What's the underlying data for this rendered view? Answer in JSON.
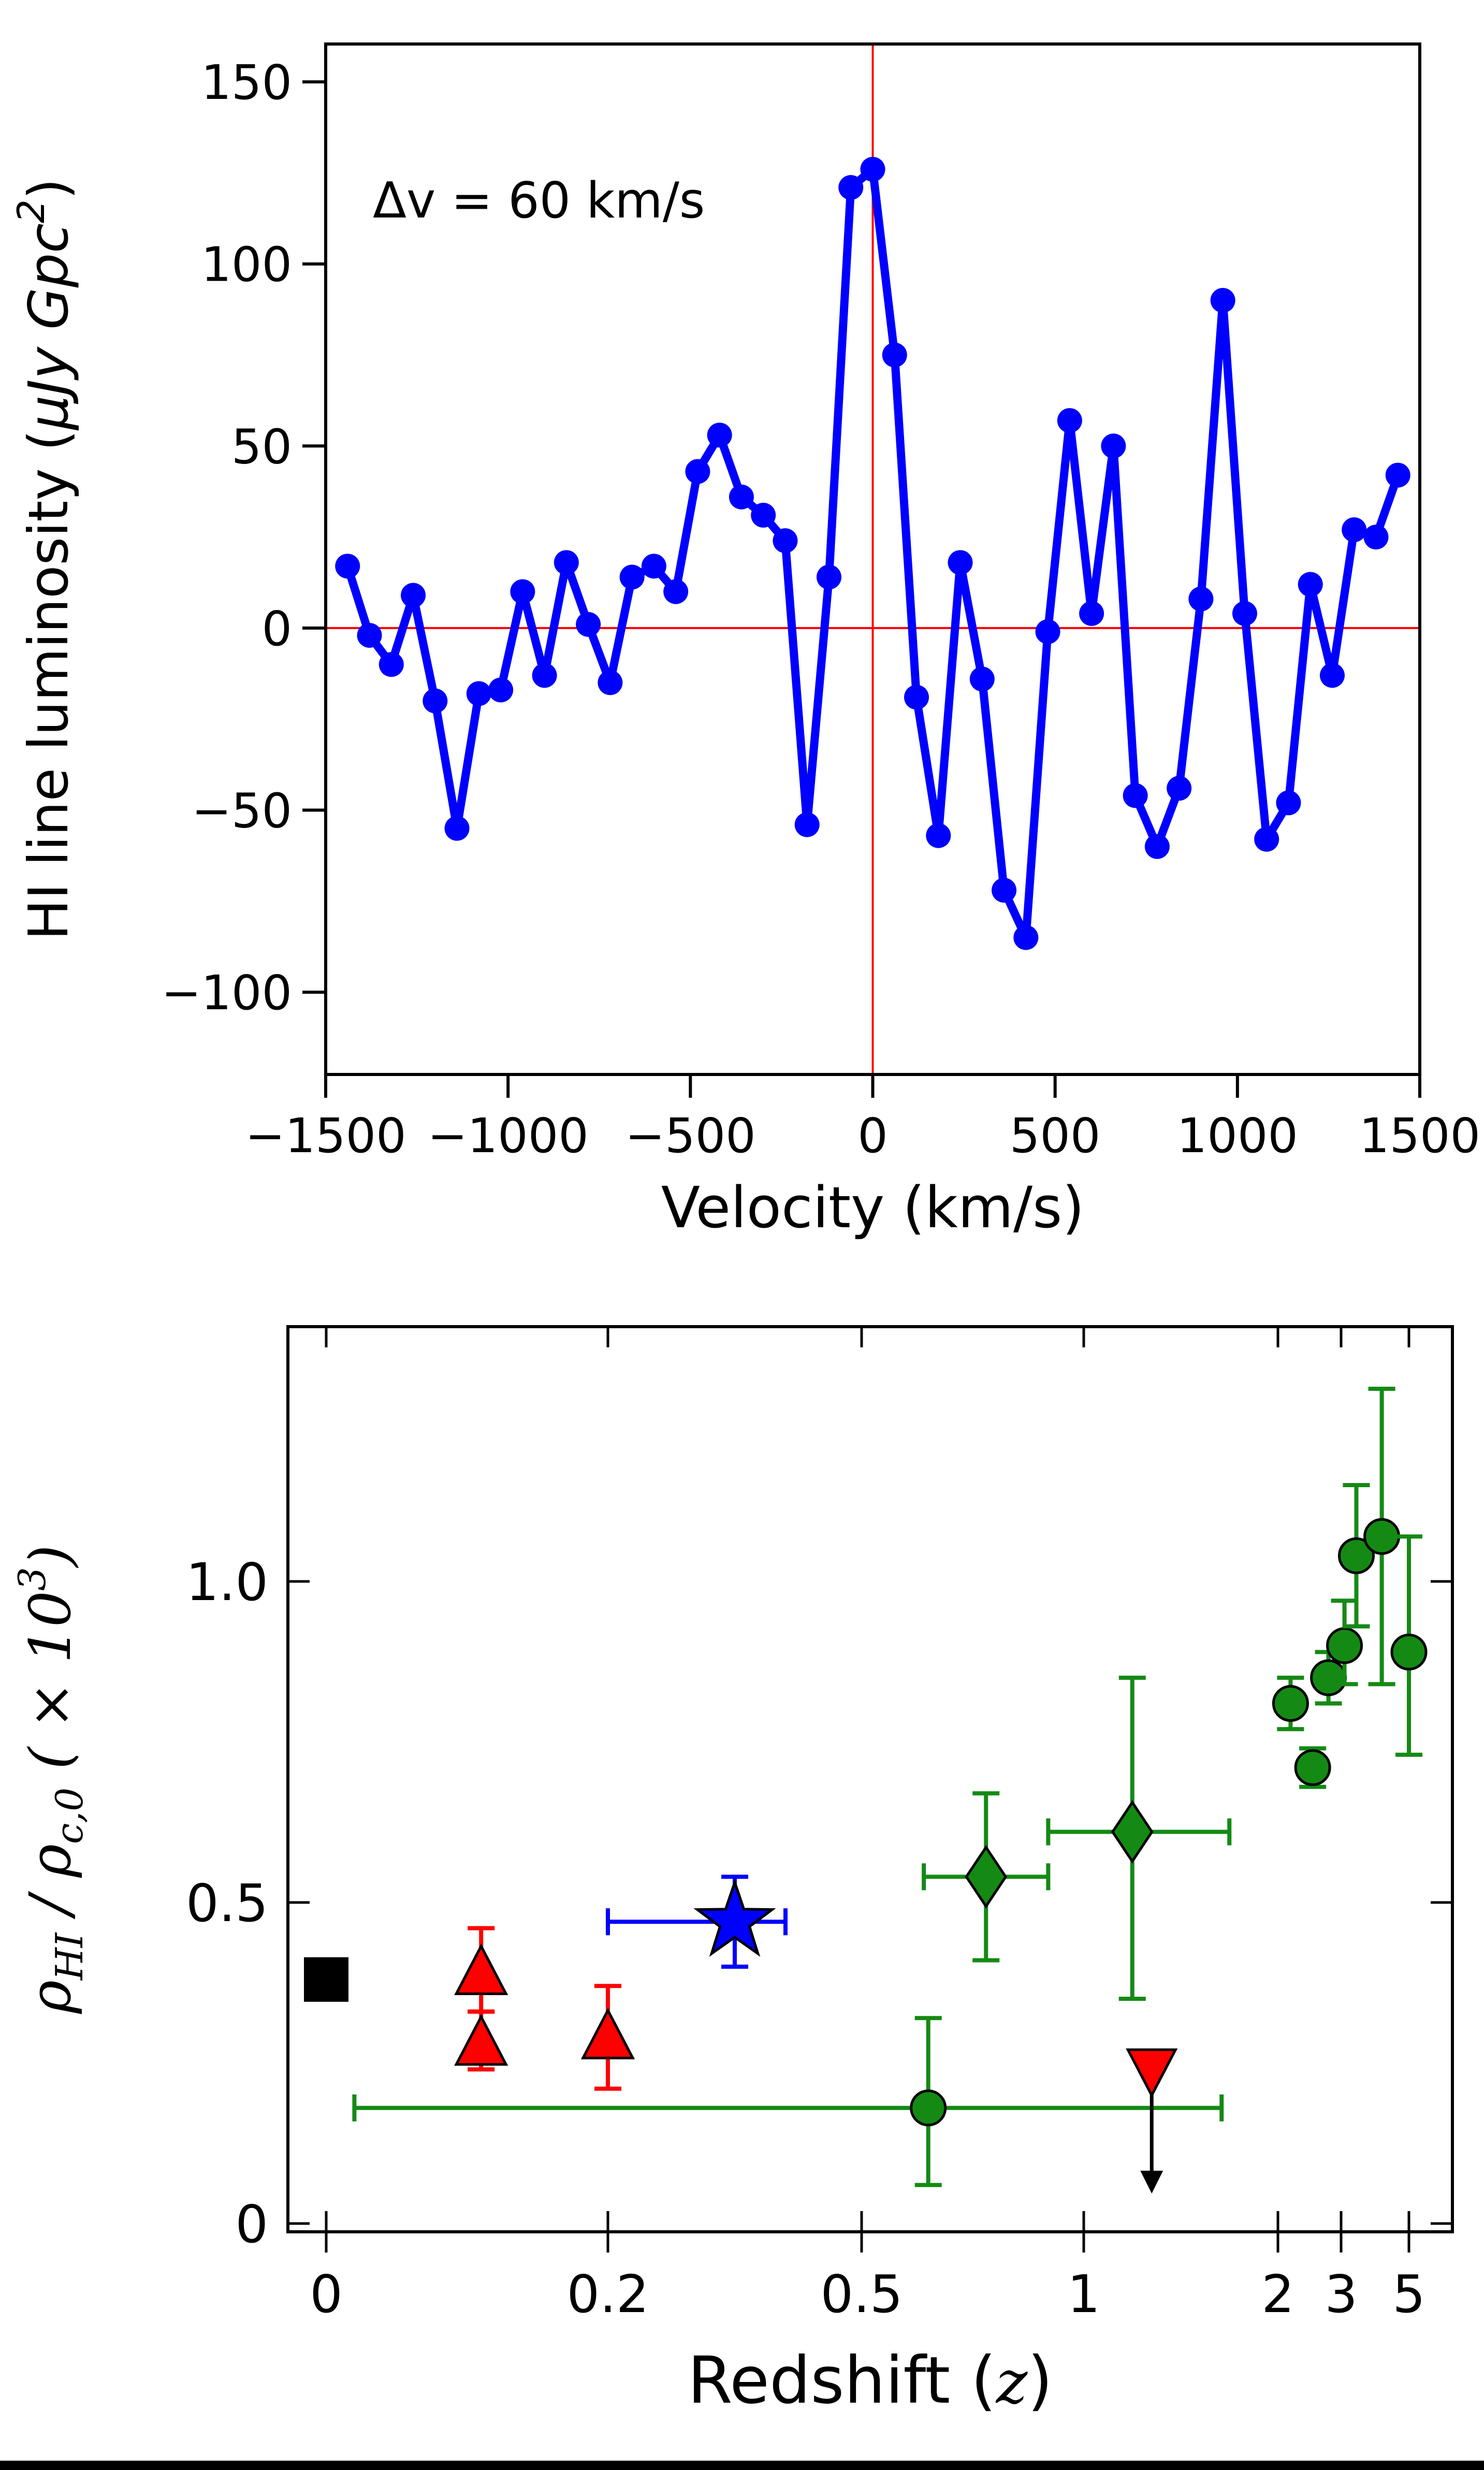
{
  "page": {
    "background": "#ffffff",
    "bottom_bar_color": "#000000"
  },
  "chart_data": [
    {
      "type": "line",
      "title": "",
      "annotation": "Δv = 60 km/s",
      "xlabel": "Velocity (km/s)",
      "ylabel": "HI line luminosity (μJy Gpc²)",
      "ylabel_parts": [
        "HI line luminosity (",
        "μJy Gpc",
        "2",
        ")"
      ],
      "xlim": [
        -1500,
        1500
      ],
      "ylim": [
        -122.6,
        160.4
      ],
      "xticks": [
        -1500,
        -1000,
        -500,
        0,
        500,
        1000,
        1500
      ],
      "xtick_labels": [
        "−1500",
        "−1000",
        "−500",
        "0",
        "500",
        "1000",
        "1500"
      ],
      "yticks": [
        150,
        100,
        50,
        0,
        -50,
        -100
      ],
      "ytick_labels": [
        "150",
        "100",
        "50",
        "0",
        "−50",
        "−100"
      ],
      "line_color": "#0000ff",
      "crosshair": {
        "x": 0,
        "y": 0,
        "color": "#ff0000"
      },
      "grid": false,
      "x": [
        -1440,
        -1380,
        -1320,
        -1260,
        -1200,
        -1140,
        -1080,
        -1020,
        -960,
        -900,
        -840,
        -780,
        -720,
        -660,
        -600,
        -540,
        -480,
        -420,
        -360,
        -300,
        -240,
        -180,
        -120,
        -60,
        0,
        60,
        120,
        180,
        240,
        300,
        360,
        420,
        480,
        540,
        600,
        660,
        720,
        780,
        840,
        900,
        960,
        1020,
        1080,
        1140,
        1200,
        1260,
        1320,
        1380,
        1440
      ],
      "y": [
        17,
        -2,
        -10,
        9,
        -20,
        -55,
        -18,
        -17,
        10,
        -13,
        18,
        1,
        -15,
        14,
        17,
        10,
        43,
        53,
        36,
        31,
        24,
        -54,
        14,
        121,
        126,
        75,
        -19,
        -57,
        18,
        -14,
        -72,
        -85,
        -1,
        57,
        4,
        50,
        -46,
        -60,
        -44,
        8,
        90,
        4,
        -58,
        -48,
        12,
        -13,
        27,
        25,
        42
      ]
    },
    {
      "type": "scatter",
      "title": "",
      "xlabel": "Redshift (z)",
      "xlabel_parts": [
        "Redshift (",
        "z",
        ")"
      ],
      "ylabel": "ρHI / ρc,0 ( × 10³)",
      "ylabel_parts": [
        "ρ",
        "HI",
        " / ",
        "ρ",
        "c,0",
        " ( × 10",
        "3",
        ")"
      ],
      "xlim": [
        0,
        5.6
      ],
      "ylim": [
        0,
        1.4
      ],
      "xticks": [
        0,
        0.2,
        0.5,
        1,
        2,
        3,
        5
      ],
      "xtick_labels": [
        "0",
        "0.2",
        "0.5",
        "1",
        "2",
        "3",
        "5"
      ],
      "yticks": [
        0,
        0.5,
        1.0
      ],
      "ytick_labels": [
        "0",
        "0.5",
        "1.0"
      ],
      "grid": false,
      "legend": "none",
      "axis_note": "x axis is nonlinear in z; tick anchors define the scale",
      "series": [
        {
          "name": "black-square",
          "marker": "square",
          "color": "#000000",
          "points": [
            {
              "z": 0,
              "v": 0.38
            }
          ]
        },
        {
          "name": "green-circles",
          "marker": "circle",
          "color": "#148a14",
          "points": [
            {
              "z": 0.65,
              "v": 0.18,
              "el": 0.12,
              "eu": 0.14,
              "xl": 0.63,
              "xu": 1.06
            },
            {
              "z": 2.2,
              "v": 0.81,
              "el": 0.04,
              "eu": 0.04,
              "xl": 0.15,
              "xu": 0.15
            },
            {
              "z": 2.55,
              "v": 0.71,
              "el": 0.03,
              "eu": 0.03
            },
            {
              "z": 2.8,
              "v": 0.85,
              "el": 0.04,
              "eu": 0.04
            },
            {
              "z": 3.1,
              "v": 0.9,
              "el": 0.06,
              "eu": 0.07
            },
            {
              "z": 3.45,
              "v": 1.04,
              "el": 0.11,
              "eu": 0.11
            },
            {
              "z": 4.2,
              "v": 1.07,
              "el": 0.23,
              "eu": 0.23
            },
            {
              "z": 5.0,
              "v": 0.89,
              "el": 0.16,
              "eu": 0.18
            }
          ]
        },
        {
          "name": "green-diamonds",
          "marker": "diamond",
          "color": "#148a14",
          "points": [
            {
              "z": 0.78,
              "v": 0.54,
              "el": 0.13,
              "eu": 0.13,
              "xl": 0.14,
              "xu": 0.14
            },
            {
              "z": 1.25,
              "v": 0.61,
              "el": 0.26,
              "eu": 0.24,
              "xl": 0.33,
              "xu": 0.5
            }
          ]
        },
        {
          "name": "red-triangles-up",
          "marker": "triangle-up",
          "color": "#ff0000",
          "points": [
            {
              "z": 0.11,
              "v": 0.39,
              "el": 0.06,
              "eu": 0.07
            },
            {
              "z": 0.11,
              "v": 0.28,
              "el": 0.04,
              "eu": 0.05
            },
            {
              "z": 0.2,
              "v": 0.29,
              "el": 0.08,
              "eu": 0.08
            }
          ]
        },
        {
          "name": "blue-star",
          "marker": "star",
          "color": "#0000ff",
          "points": [
            {
              "z": 0.35,
              "v": 0.47,
              "el": 0.07,
              "eu": 0.07,
              "xl": 0.15,
              "xu": 0.06
            }
          ]
        },
        {
          "name": "red-upper-limit",
          "marker": "triangle-down",
          "color": "#ff0000",
          "points": [
            {
              "z": 1.35,
              "v": 0.24,
              "arrow_to": 0.05
            }
          ]
        }
      ]
    }
  ]
}
